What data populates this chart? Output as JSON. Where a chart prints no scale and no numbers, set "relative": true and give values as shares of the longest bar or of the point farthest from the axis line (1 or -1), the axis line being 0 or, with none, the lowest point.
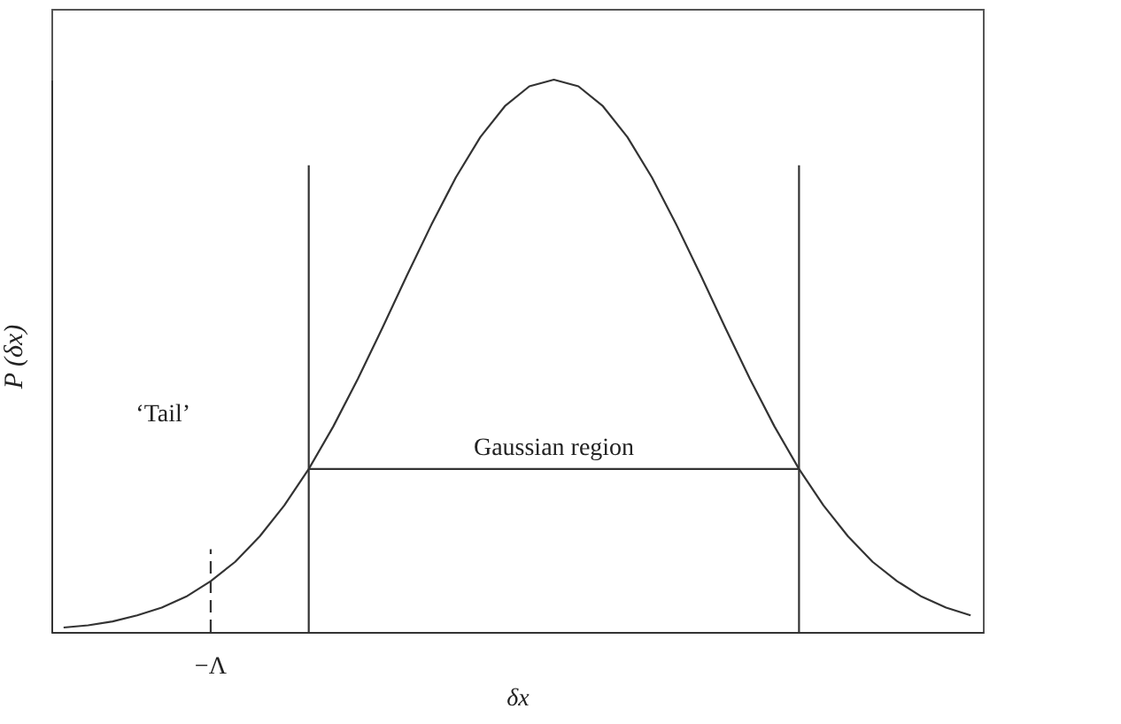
{
  "chart_data": {
    "type": "line",
    "relative": true,
    "xlabel": "δx",
    "ylabel": "P (δx)",
    "categories": [
      null,
      null,
      null,
      null,
      null,
      null,
      null,
      null,
      null,
      null,
      null,
      null,
      null,
      null,
      null,
      null,
      null,
      null,
      null,
      null,
      null,
      null,
      null,
      null,
      null,
      null,
      null,
      null,
      null,
      null,
      null,
      null,
      null,
      null,
      null,
      null,
      null,
      null
    ],
    "line_style": "solid",
    "series": [
      {
        "color": "#333333",
        "values": [
          0.008,
          0.012,
          0.019,
          0.03,
          0.044,
          0.064,
          0.092,
          0.127,
          0.173,
          0.229,
          0.295,
          0.372,
          0.458,
          0.55,
          0.645,
          0.737,
          0.823,
          0.896,
          0.952,
          0.988,
          1,
          0.988,
          0.952,
          0.896,
          0.823,
          0.737,
          0.645,
          0.55,
          0.458,
          0.372,
          0.295,
          0.229,
          0.173,
          0.127,
          0.092,
          0.064,
          0.044,
          0.03
        ]
      }
    ],
    "ref_lines": [
      {
        "axis": "y",
        "value": 0.295,
        "label": "Gaussian region"
      }
    ],
    "annotations": [
      "‘Tail’",
      "−Λ"
    ]
  }
}
